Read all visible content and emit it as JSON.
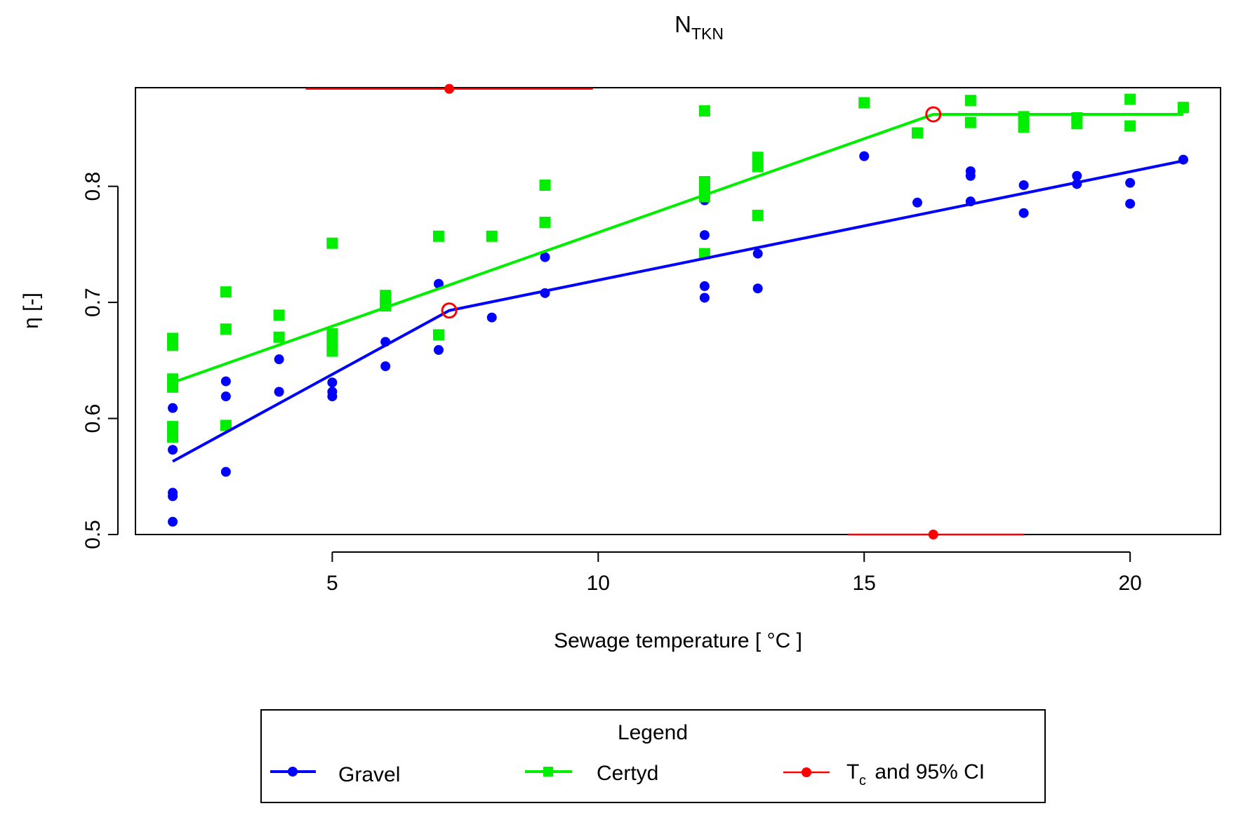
{
  "chart_data": {
    "type": "scatter",
    "title_main": "N",
    "title_sub": "TKN",
    "xlabel": "Sewage temperature [ °C ]",
    "ylabel": "η [-]",
    "xlim": [
      1.3,
      21.7
    ],
    "ylim": [
      0.5,
      0.885
    ],
    "x_ticks": [
      5,
      10,
      15,
      20
    ],
    "x_tick_labels": [
      "5",
      "10",
      "15",
      "20"
    ],
    "y_ticks": [
      0.5,
      0.6,
      0.7,
      0.8
    ],
    "y_tick_labels": [
      "0.5",
      "0.6",
      "0.7",
      "0.8"
    ],
    "legend": {
      "title": "Legend",
      "position": "bottom",
      "entries": [
        {
          "label": "Gravel",
          "color": "#0000ff",
          "marker": "circle"
        },
        {
          "label": "Certyd",
          "color": "#00ee00",
          "marker": "square"
        },
        {
          "label_main": "T",
          "label_sub": "c",
          "label_rest": " and 95% CI",
          "color": "#ff0000",
          "marker": "circle"
        }
      ]
    },
    "series": [
      {
        "name": "Gravel",
        "color": "#0000ff",
        "marker": "circle",
        "points": [
          [
            2,
            0.511
          ],
          [
            2,
            0.533
          ],
          [
            2,
            0.536
          ],
          [
            2,
            0.573
          ],
          [
            2,
            0.609
          ],
          [
            3,
            0.554
          ],
          [
            3,
            0.619
          ],
          [
            3,
            0.632
          ],
          [
            4,
            0.623
          ],
          [
            4,
            0.651
          ],
          [
            5,
            0.619
          ],
          [
            5,
            0.623
          ],
          [
            5,
            0.631
          ],
          [
            6,
            0.645
          ],
          [
            6,
            0.666
          ],
          [
            7,
            0.659
          ],
          [
            7,
            0.716
          ],
          [
            8,
            0.687
          ],
          [
            9,
            0.708
          ],
          [
            9,
            0.739
          ],
          [
            12,
            0.704
          ],
          [
            12,
            0.714
          ],
          [
            12,
            0.758
          ],
          [
            12,
            0.788
          ],
          [
            13,
            0.712
          ],
          [
            13,
            0.742
          ],
          [
            15,
            0.826
          ],
          [
            16,
            0.786
          ],
          [
            17,
            0.787
          ],
          [
            17,
            0.809
          ],
          [
            17,
            0.813
          ],
          [
            18,
            0.777
          ],
          [
            18,
            0.801
          ],
          [
            19,
            0.802
          ],
          [
            19,
            0.809
          ],
          [
            20,
            0.785
          ],
          [
            20,
            0.803
          ],
          [
            21,
            0.823
          ]
        ],
        "fit_line": [
          [
            2,
            0.563
          ],
          [
            7.2,
            0.693
          ],
          [
            21,
            0.822
          ]
        ]
      },
      {
        "name": "Certyd",
        "color": "#00ee00",
        "marker": "square",
        "points": [
          [
            2,
            0.584
          ],
          [
            2,
            0.593
          ],
          [
            2,
            0.627
          ],
          [
            2,
            0.634
          ],
          [
            2,
            0.663
          ],
          [
            2,
            0.669
          ],
          [
            3,
            0.594
          ],
          [
            3,
            0.677
          ],
          [
            3,
            0.709
          ],
          [
            4,
            0.67
          ],
          [
            4,
            0.689
          ],
          [
            5,
            0.658
          ],
          [
            5,
            0.665
          ],
          [
            5,
            0.673
          ],
          [
            5,
            0.751
          ],
          [
            6,
            0.697
          ],
          [
            6,
            0.7
          ],
          [
            6,
            0.706
          ],
          [
            7,
            0.672
          ],
          [
            7,
            0.757
          ],
          [
            8,
            0.757
          ],
          [
            9,
            0.769
          ],
          [
            9,
            0.801
          ],
          [
            12,
            0.742
          ],
          [
            12,
            0.791
          ],
          [
            12,
            0.798
          ],
          [
            12,
            0.804
          ],
          [
            12,
            0.865
          ],
          [
            13,
            0.775
          ],
          [
            13,
            0.817
          ],
          [
            13,
            0.825
          ],
          [
            15,
            0.872
          ],
          [
            16,
            0.846
          ],
          [
            17,
            0.855
          ],
          [
            17,
            0.874
          ],
          [
            18,
            0.851
          ],
          [
            18,
            0.86
          ],
          [
            19,
            0.854
          ],
          [
            19,
            0.859
          ],
          [
            20,
            0.852
          ],
          [
            20,
            0.875
          ],
          [
            21,
            0.868
          ]
        ],
        "fit_line": [
          [
            2,
            0.631
          ],
          [
            16.3,
            0.862
          ],
          [
            21,
            0.862
          ]
        ]
      }
    ],
    "breakpoints": [
      {
        "series": "Gravel",
        "x": 7.2,
        "y": 0.693,
        "ci": [
          4.5,
          9.9
        ],
        "ci_marker_y": 0.884
      },
      {
        "series": "Certyd",
        "x": 16.3,
        "y": 0.862,
        "ci": [
          14.7,
          18.0
        ],
        "ci_marker_y": 0.5
      }
    ]
  }
}
